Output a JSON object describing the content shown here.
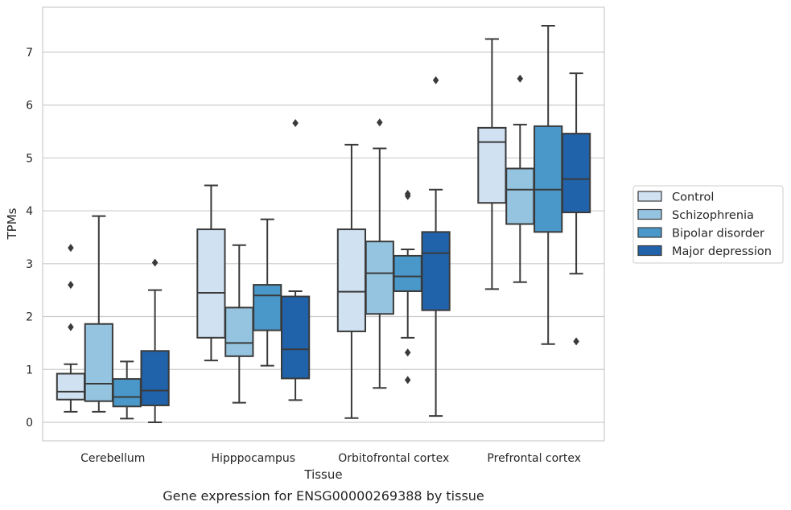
{
  "chart_data": {
    "type": "box",
    "title": "",
    "caption": "Gene expression for ENSG00000269388 by tissue",
    "xlabel": "Tissue",
    "ylabel": "TPMs",
    "ylim": [
      -0.35,
      7.85
    ],
    "yticks": [
      0,
      1,
      2,
      3,
      4,
      5,
      6,
      7
    ],
    "grid": "horizontal",
    "legend_position": "right",
    "categories": [
      "Cerebellum",
      "Hipppocampus",
      "Orbitofrontal cortex",
      "Prefrontal cortex"
    ],
    "series": [
      {
        "name": "Control",
        "color": "#d0e1f2",
        "boxes": [
          {
            "whislo": 0.2,
            "q1": 0.43,
            "med": 0.58,
            "q3": 0.92,
            "whishi": 1.1,
            "fliers": [
              1.8,
              2.6,
              3.3
            ]
          },
          {
            "whislo": 1.17,
            "q1": 1.6,
            "med": 2.45,
            "q3": 3.65,
            "whishi": 4.48,
            "fliers": []
          },
          {
            "whislo": 0.08,
            "q1": 1.72,
            "med": 2.47,
            "q3": 3.65,
            "whishi": 5.25,
            "fliers": []
          },
          {
            "whislo": 2.52,
            "q1": 4.15,
            "med": 5.3,
            "q3": 5.57,
            "whishi": 7.25,
            "fliers": []
          }
        ]
      },
      {
        "name": "Schizophrenia",
        "color": "#94c4df",
        "boxes": [
          {
            "whislo": 0.2,
            "q1": 0.4,
            "med": 0.73,
            "q3": 1.86,
            "whishi": 3.9,
            "fliers": []
          },
          {
            "whislo": 0.37,
            "q1": 1.25,
            "med": 1.5,
            "q3": 2.17,
            "whishi": 3.35,
            "fliers": []
          },
          {
            "whislo": 0.65,
            "q1": 2.05,
            "med": 2.82,
            "q3": 3.42,
            "whishi": 5.18,
            "fliers": [
              5.67
            ]
          },
          {
            "whislo": 2.65,
            "q1": 3.75,
            "med": 4.4,
            "q3": 4.8,
            "whishi": 5.63,
            "fliers": [
              6.5
            ]
          }
        ]
      },
      {
        "name": "Bipolar disorder",
        "color": "#4a98c9",
        "boxes": [
          {
            "whislo": 0.07,
            "q1": 0.3,
            "med": 0.48,
            "q3": 0.82,
            "whishi": 1.15,
            "fliers": []
          },
          {
            "whislo": 1.07,
            "q1": 1.74,
            "med": 2.4,
            "q3": 2.6,
            "whishi": 3.84,
            "fliers": []
          },
          {
            "whislo": 1.6,
            "q1": 2.48,
            "med": 2.76,
            "q3": 3.15,
            "whishi": 3.27,
            "fliers": [
              0.8,
              1.32,
              4.28,
              4.32
            ]
          },
          {
            "whislo": 1.48,
            "q1": 3.6,
            "med": 4.4,
            "q3": 5.6,
            "whishi": 7.5,
            "fliers": []
          }
        ]
      },
      {
        "name": "Major depression",
        "color": "#2163aa",
        "boxes": [
          {
            "whislo": 0.0,
            "q1": 0.32,
            "med": 0.6,
            "q3": 1.35,
            "whishi": 2.5,
            "fliers": [
              3.02
            ]
          },
          {
            "whislo": 0.42,
            "q1": 0.83,
            "med": 1.38,
            "q3": 2.38,
            "whishi": 2.48,
            "fliers": [
              5.66
            ]
          },
          {
            "whislo": 0.12,
            "q1": 2.12,
            "med": 3.2,
            "q3": 3.6,
            "whishi": 4.4,
            "fliers": [
              6.47
            ]
          },
          {
            "whislo": 2.81,
            "q1": 3.97,
            "med": 4.6,
            "q3": 5.46,
            "whishi": 6.6,
            "fliers": [
              1.53
            ]
          }
        ]
      }
    ]
  }
}
